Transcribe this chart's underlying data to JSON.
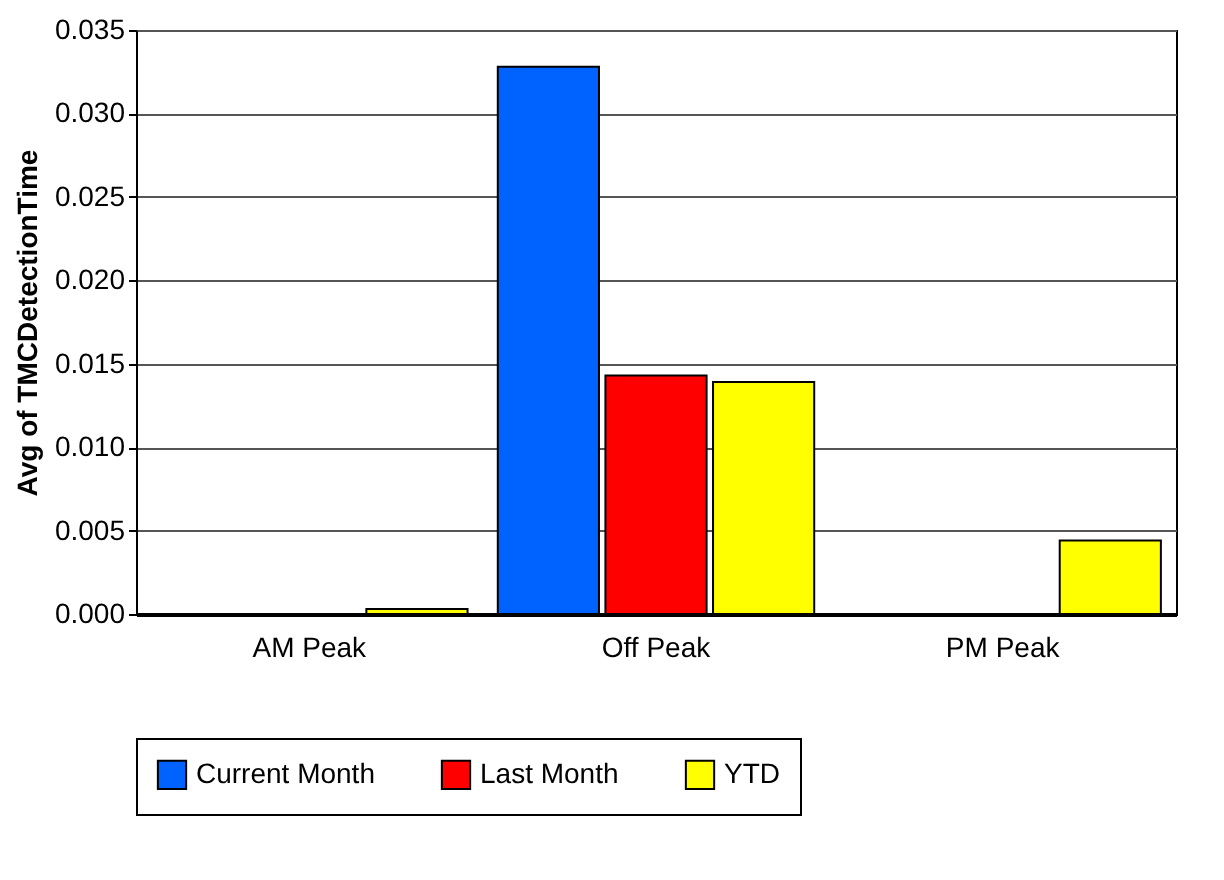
{
  "chart_data": {
    "type": "bar",
    "ylabel": "Avg of TMCDetectionTime",
    "categories": [
      "AM Peak",
      "Off Peak",
      "PM Peak"
    ],
    "series": [
      {
        "name": "Current Month",
        "color": "#0062ff",
        "values": [
          null,
          0.0328,
          null
        ]
      },
      {
        "name": "Last Month",
        "color": "#ff0000",
        "values": [
          null,
          0.0143,
          null
        ]
      },
      {
        "name": "YTD",
        "color": "#ffff00",
        "values": [
          0.0003,
          0.0139,
          0.0044
        ]
      }
    ],
    "ylim": [
      0,
      0.035
    ],
    "yticks": [
      {
        "value": 0,
        "label": "0.000"
      },
      {
        "value": 0.005,
        "label": "0.005"
      },
      {
        "value": 0.01,
        "label": "0.010"
      },
      {
        "value": 0.015,
        "label": "0.015"
      },
      {
        "value": 0.02,
        "label": "0.020"
      },
      {
        "value": 0.025,
        "label": "0.025"
      },
      {
        "value": 0.03,
        "label": "0.030"
      },
      {
        "value": 0.035,
        "label": "0.035"
      }
    ],
    "grid": "y",
    "legend": "bottom"
  }
}
